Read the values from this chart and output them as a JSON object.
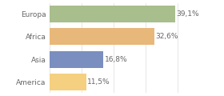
{
  "categories": [
    "Europa",
    "Africa",
    "Asia",
    "America"
  ],
  "values": [
    39.1,
    32.6,
    16.8,
    11.5
  ],
  "labels": [
    "39,1%",
    "32,6%",
    "16,8%",
    "11,5%"
  ],
  "bar_colors": [
    "#a8be8c",
    "#e8b87a",
    "#7a8fbf",
    "#f5d080"
  ],
  "background_color": "#ffffff",
  "xlim": [
    0,
    46
  ],
  "bar_height": 0.75,
  "label_fontsize": 6.5,
  "category_fontsize": 6.5,
  "text_color": "#666666"
}
